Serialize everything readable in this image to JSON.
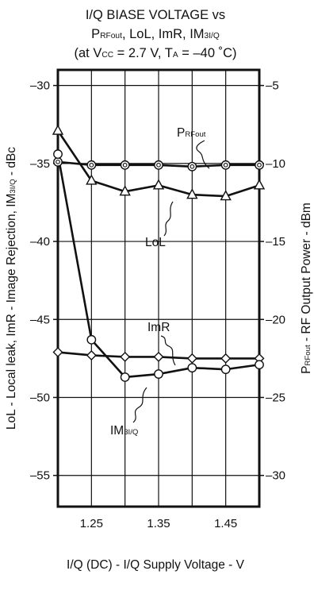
{
  "chart_data": {
    "type": "line",
    "title": {
      "line1": "I/Q BIASE VOLTAGE vs",
      "line2_parts": [
        {
          "text": "P",
          "sub": false
        },
        {
          "text": "RFout",
          "sub": true
        },
        {
          "text": ", LoL, ImR, IM",
          "sub": false
        },
        {
          "text": "3I/Q",
          "sub": true
        }
      ],
      "line3_parts": [
        {
          "text": "(at V",
          "sub": false
        },
        {
          "text": "CC",
          "sub": true
        },
        {
          "text": " = 2.7 V, T",
          "sub": false
        },
        {
          "text": "A",
          "sub": true
        },
        {
          "text": " = –40 ˚C)",
          "sub": false
        }
      ]
    },
    "xlabel": "I/Q (DC) - I/Q Supply Voltage - V",
    "ylabel_left_parts": [
      {
        "text": "LoL - Local leak, ImR - Image Rejection, IM",
        "sub": false
      },
      {
        "text": "3I/Q",
        "sub": true
      },
      {
        "text": " - dBc",
        "sub": false
      }
    ],
    "ylabel_right_parts": [
      {
        "text": "P",
        "sub": false
      },
      {
        "text": "RFout",
        "sub": true
      },
      {
        "text": " - RF Output Power - dBm",
        "sub": false
      }
    ],
    "xlim": [
      1.2,
      1.5
    ],
    "x_ticks": [
      1.25,
      1.35,
      1.45
    ],
    "x_tick_labels": [
      "1.25",
      "1.35",
      "1.45"
    ],
    "x_grid": [
      1.25,
      1.3,
      1.35,
      1.4,
      1.45
    ],
    "ylim_left": [
      -57,
      -29
    ],
    "y_ticks_left": [
      -30,
      -35,
      -40,
      -45,
      -50,
      -55
    ],
    "y_tick_labels_left": [
      "–30",
      "–35",
      "–40",
      "–45",
      "–50",
      "–55"
    ],
    "ylim_right": [
      -32,
      -4
    ],
    "y_ticks_right": [
      -5,
      -10,
      -15,
      -20,
      -25,
      -30
    ],
    "y_tick_labels_right": [
      "–5",
      "–10",
      "–15",
      "–20",
      "–25",
      "–30"
    ],
    "grid": true,
    "series": [
      {
        "key": "prfout",
        "axis": "right",
        "marker": "double-circle",
        "x": [
          1.2,
          1.25,
          1.3,
          1.35,
          1.4,
          1.45,
          1.5
        ],
        "values": [
          -9.9,
          -10.1,
          -10.1,
          -10.1,
          -10.2,
          -10.1,
          -10.1
        ]
      },
      {
        "key": "lol",
        "axis": "left",
        "marker": "triangle",
        "x": [
          1.2,
          1.25,
          1.3,
          1.35,
          1.4,
          1.45,
          1.5
        ],
        "values": [
          -32.9,
          -36.1,
          -36.8,
          -36.4,
          -37.0,
          -37.1,
          -36.4
        ]
      },
      {
        "key": "imr",
        "axis": "left",
        "marker": "diamond",
        "x": [
          1.2,
          1.25,
          1.3,
          1.35,
          1.4,
          1.45,
          1.5
        ],
        "values": [
          -47.1,
          -47.3,
          -47.4,
          -47.4,
          -47.5,
          -47.5,
          -47.5
        ]
      },
      {
        "key": "im3",
        "axis": "left",
        "marker": "circle",
        "x": [
          1.2,
          1.25,
          1.3,
          1.35,
          1.4,
          1.45,
          1.5
        ],
        "values": [
          -34.4,
          -46.3,
          -48.7,
          -48.5,
          -48.1,
          -48.2,
          -47.9
        ]
      }
    ],
    "annotations": [
      {
        "key": "prfout",
        "parts": [
          {
            "text": "P",
            "sub": false
          },
          {
            "text": "RFout",
            "sub": true
          }
        ]
      },
      {
        "key": "lol",
        "parts": [
          {
            "text": "LoL",
            "sub": false
          }
        ]
      },
      {
        "key": "imr",
        "parts": [
          {
            "text": "ImR",
            "sub": false
          }
        ]
      },
      {
        "key": "im3",
        "parts": [
          {
            "text": "IM",
            "sub": false
          },
          {
            "text": "3I/Q",
            "sub": true
          }
        ]
      }
    ]
  }
}
